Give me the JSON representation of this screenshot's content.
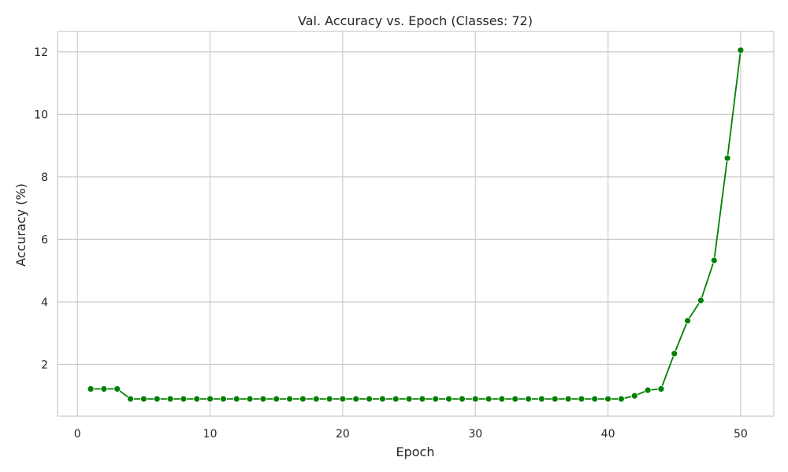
{
  "chart_data": {
    "type": "line",
    "title": "Val. Accuracy vs. Epoch (Classes: 72)",
    "xlabel": "Epoch",
    "ylabel": "Accuracy (%)",
    "xlim": [
      -1.5,
      52.5
    ],
    "ylim": [
      0.35,
      12.65
    ],
    "x_ticks": [
      0,
      10,
      20,
      30,
      40,
      50
    ],
    "y_ticks": [
      2,
      4,
      6,
      8,
      10,
      12
    ],
    "grid": true,
    "legend": "none",
    "colors": {
      "line": "#008000",
      "grid": "#cccccc",
      "spine": "#cccccc",
      "text": "#262626"
    },
    "series": [
      {
        "x": [
          1,
          2,
          3,
          4,
          5,
          6,
          7,
          8,
          9,
          10,
          11,
          12,
          13,
          14,
          15,
          16,
          17,
          18,
          19,
          20,
          21,
          22,
          23,
          24,
          25,
          26,
          27,
          28,
          29,
          30,
          31,
          32,
          33,
          34,
          35,
          36,
          37,
          38,
          39,
          40,
          41,
          42,
          43,
          44,
          45,
          46,
          47,
          48,
          49,
          50
        ],
        "values": [
          1.22,
          1.22,
          1.22,
          0.9,
          0.9,
          0.9,
          0.9,
          0.9,
          0.9,
          0.9,
          0.9,
          0.9,
          0.9,
          0.9,
          0.9,
          0.9,
          0.9,
          0.9,
          0.9,
          0.9,
          0.9,
          0.9,
          0.9,
          0.9,
          0.9,
          0.9,
          0.9,
          0.9,
          0.9,
          0.9,
          0.9,
          0.9,
          0.9,
          0.9,
          0.9,
          0.9,
          0.9,
          0.9,
          0.9,
          0.9,
          0.9,
          1.0,
          1.18,
          1.22,
          2.35,
          3.4,
          4.05,
          5.33,
          8.6,
          12.05
        ]
      }
    ]
  }
}
